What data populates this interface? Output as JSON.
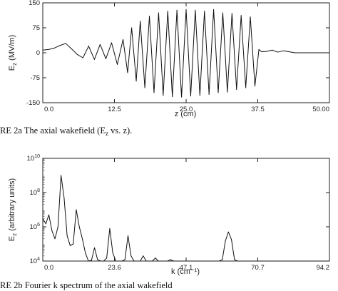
{
  "chart_data": [
    {
      "type": "line",
      "xlabel": "z (cm)",
      "ylabel": "E_z (MV/m)",
      "ylabel_main": "E",
      "ylabel_sub": "z",
      "ylabel_rest": " (MV/m)",
      "xlim": [
        0.0,
        50.0
      ],
      "ylim": [
        -150,
        150
      ],
      "x_ticks": [
        "0.0",
        "12.5",
        "25.0",
        "37.5",
        "50.00"
      ],
      "y_ticks": [
        "150",
        "75",
        "0",
        "-75",
        "-150"
      ],
      "caption": "RE 2a   The axial wakefield (E",
      "caption_sub": "z",
      "caption_end": " vs. z).",
      "series": [
        {
          "x": [
            0,
            1,
            2,
            3,
            4,
            5,
            6,
            7,
            8,
            9,
            10,
            11,
            12,
            13,
            14,
            14.8,
            15.5,
            16.3,
            17,
            17.8,
            18.6,
            19.4,
            20.2,
            21,
            21.8,
            22.6,
            23.4,
            24.2,
            25,
            25.8,
            26.6,
            27.4,
            28.2,
            29,
            29.8,
            30.6,
            31.4,
            32.2,
            33,
            33.8,
            34.6,
            35.4,
            36.2,
            37,
            37.7,
            38.2,
            39,
            40,
            41,
            42,
            43,
            44,
            45,
            46,
            47,
            48,
            49,
            50
          ],
          "y": [
            8,
            10,
            14,
            22,
            28,
            12,
            -5,
            -15,
            20,
            -20,
            25,
            -18,
            30,
            -35,
            40,
            -60,
            75,
            -85,
            95,
            -105,
            110,
            -120,
            120,
            -128,
            125,
            -132,
            128,
            -133,
            130,
            -130,
            128,
            -128,
            125,
            -125,
            130,
            -120,
            120,
            -118,
            118,
            -110,
            112,
            -105,
            108,
            -100,
            10,
            3,
            4,
            8,
            2,
            6,
            3,
            0,
            0,
            0,
            0,
            0,
            0,
            0
          ]
        }
      ]
    },
    {
      "type": "line",
      "xlabel": "k (cm⁻¹)",
      "ylabel": "E_z (arbitrary units)",
      "ylabel_main": "E",
      "ylabel_sub": "z",
      "ylabel_rest": " (arbitrary units)",
      "xlim": [
        0.0,
        94.2
      ],
      "ylim": [
        10000,
        10000000000
      ],
      "yscale": "log",
      "x_ticks": [
        "0.0",
        "23.6",
        "47.1",
        "70.7",
        "94.2"
      ],
      "y_ticks": [
        "10^10",
        "10^8",
        "10^6",
        "10^4"
      ],
      "caption": "RE 2b   Fourier k spectrum of the axial wakefield",
      "series": [
        {
          "x": [
            0,
            1,
            2,
            3,
            4,
            5,
            6,
            7,
            8,
            9,
            10,
            11,
            12,
            13,
            14,
            15,
            16,
            17,
            18,
            19,
            20,
            21,
            22,
            23,
            24,
            25,
            26,
            27,
            28,
            29,
            30,
            31,
            32,
            33,
            34,
            35,
            36,
            37,
            38,
            39,
            40,
            41,
            42,
            43,
            44,
            45,
            46,
            47,
            48,
            55,
            58,
            59,
            60,
            61,
            62,
            63,
            64,
            70,
            80,
            94.2
          ],
          "y": [
            3000000,
            1500000,
            5000000,
            600000,
            200000,
            1000000,
            1000000000,
            50000000,
            300000,
            80000,
            100000,
            10000000,
            1000000,
            200000,
            30000,
            10000,
            11000,
            60000,
            12000,
            10000,
            10000,
            15000,
            800000,
            30000,
            10000,
            10000,
            10000,
            12000,
            300000,
            20000,
            10000,
            10000,
            10000,
            20000,
            10000,
            10000,
            10000,
            15000,
            10000,
            10000,
            10000,
            10000,
            12000,
            10000,
            10000,
            10000,
            10000,
            10000,
            10000,
            10000,
            10000,
            12000,
            150000,
            500000,
            180000,
            12000,
            10000,
            10000,
            10000,
            10000
          ]
        }
      ]
    }
  ]
}
